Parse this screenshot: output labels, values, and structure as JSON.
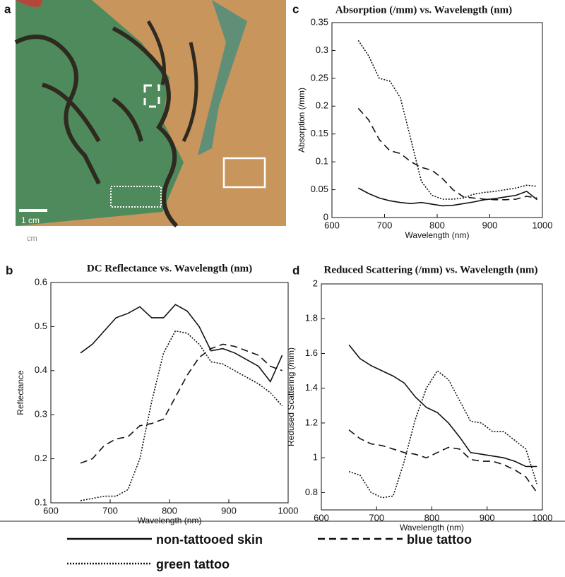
{
  "photo": {
    "panel": "a",
    "scale_label": "1 cm",
    "unit_label": "cm"
  },
  "chart_data": [
    {
      "type": "line",
      "panel": "b",
      "title": "DC Reflectance vs. Wavelength (nm)",
      "xlabel": "Wavelength (nm)",
      "ylabel": "Reflectance",
      "x": [
        650,
        670,
        690,
        710,
        730,
        750,
        770,
        790,
        810,
        830,
        850,
        870,
        890,
        910,
        930,
        950,
        970,
        990
      ],
      "xlim": [
        600,
        1000
      ],
      "xticks": [
        600,
        700,
        800,
        900,
        1000
      ],
      "ylim": [
        0.1,
        0.6
      ],
      "yticks": [
        0.1,
        0.2,
        0.3,
        0.4,
        0.5,
        0.6
      ],
      "series": [
        {
          "name": "non-tattooed skin",
          "color": "#111111",
          "dash": "solid",
          "values": [
            0.44,
            0.46,
            0.49,
            0.52,
            0.53,
            0.545,
            0.52,
            0.52,
            0.55,
            0.535,
            0.5,
            0.445,
            0.45,
            0.44,
            0.425,
            0.41,
            0.375,
            0.435
          ]
        },
        {
          "name": "blue tattoo",
          "color": "#111111",
          "dash": "dashed",
          "values": [
            0.19,
            0.2,
            0.23,
            0.245,
            0.25,
            0.275,
            0.28,
            0.29,
            0.34,
            0.39,
            0.43,
            0.45,
            0.46,
            0.455,
            0.445,
            0.435,
            0.41,
            0.4
          ]
        },
        {
          "name": "green tattoo",
          "color": "#111111",
          "dash": "dotted",
          "values": [
            0.105,
            0.11,
            0.115,
            0.115,
            0.13,
            0.2,
            0.33,
            0.44,
            0.49,
            0.485,
            0.46,
            0.42,
            0.415,
            0.4,
            0.385,
            0.37,
            0.35,
            0.32
          ]
        }
      ]
    },
    {
      "type": "line",
      "panel": "c",
      "title": "Absorption (/mm) vs. Wavelength (nm)",
      "xlabel": "Wavelength (nm)",
      "ylabel": "Absorption (/mm)",
      "x": [
        650,
        670,
        690,
        710,
        730,
        750,
        770,
        790,
        810,
        830,
        850,
        870,
        890,
        910,
        930,
        950,
        970,
        990
      ],
      "xlim": [
        600,
        1000
      ],
      "xticks": [
        600,
        700,
        800,
        900,
        1000
      ],
      "ylim": [
        0,
        0.35
      ],
      "yticks": [
        0,
        0.05,
        0.1,
        0.15,
        0.2,
        0.25,
        0.3,
        0.35
      ],
      "series": [
        {
          "name": "non-tattooed skin",
          "color": "#111111",
          "dash": "solid",
          "values": [
            0.053,
            0.043,
            0.035,
            0.03,
            0.027,
            0.025,
            0.027,
            0.024,
            0.021,
            0.022,
            0.025,
            0.028,
            0.032,
            0.034,
            0.037,
            0.04,
            0.047,
            0.032
          ]
        },
        {
          "name": "blue tattoo",
          "color": "#111111",
          "dash": "dashed",
          "values": [
            0.196,
            0.175,
            0.14,
            0.12,
            0.115,
            0.1,
            0.09,
            0.085,
            0.07,
            0.05,
            0.037,
            0.035,
            0.033,
            0.032,
            0.032,
            0.033,
            0.038,
            0.035
          ]
        },
        {
          "name": "green tattoo",
          "color": "#111111",
          "dash": "dotted",
          "values": [
            0.318,
            0.29,
            0.25,
            0.245,
            0.215,
            0.14,
            0.065,
            0.04,
            0.033,
            0.033,
            0.035,
            0.042,
            0.045,
            0.047,
            0.05,
            0.053,
            0.058,
            0.056
          ]
        }
      ]
    },
    {
      "type": "line",
      "panel": "d",
      "title": "Reduced Scattering (/mm) vs. Wavelength (nm)",
      "xlabel": "Wavelength (nm)",
      "ylabel": "Redused Scattering (/mm)",
      "x": [
        650,
        670,
        690,
        710,
        730,
        750,
        770,
        790,
        810,
        830,
        850,
        870,
        890,
        910,
        930,
        950,
        970,
        990
      ],
      "xlim": [
        600,
        1000
      ],
      "xticks": [
        600,
        700,
        800,
        900,
        1000
      ],
      "ylim": [
        0.7,
        2
      ],
      "yticks": [
        0.8,
        1,
        1.2,
        1.4,
        1.6,
        1.8,
        2
      ],
      "series": [
        {
          "name": "non-tattooed skin",
          "color": "#111111",
          "dash": "solid",
          "values": [
            1.65,
            1.57,
            1.53,
            1.5,
            1.47,
            1.43,
            1.35,
            1.29,
            1.26,
            1.2,
            1.12,
            1.03,
            1.02,
            1.01,
            1.0,
            0.98,
            0.95,
            0.95
          ]
        },
        {
          "name": "blue tattoo",
          "color": "#111111",
          "dash": "dashed",
          "values": [
            1.16,
            1.11,
            1.08,
            1.07,
            1.05,
            1.03,
            1.02,
            1.0,
            1.03,
            1.06,
            1.05,
            0.99,
            0.98,
            0.98,
            0.96,
            0.93,
            0.89,
            0.8
          ]
        },
        {
          "name": "green tattoo",
          "color": "#111111",
          "dash": "dotted",
          "values": [
            0.92,
            0.9,
            0.8,
            0.77,
            0.78,
            0.98,
            1.22,
            1.4,
            1.5,
            1.45,
            1.33,
            1.21,
            1.2,
            1.15,
            1.15,
            1.1,
            1.05,
            0.85
          ]
        }
      ]
    }
  ]
}
